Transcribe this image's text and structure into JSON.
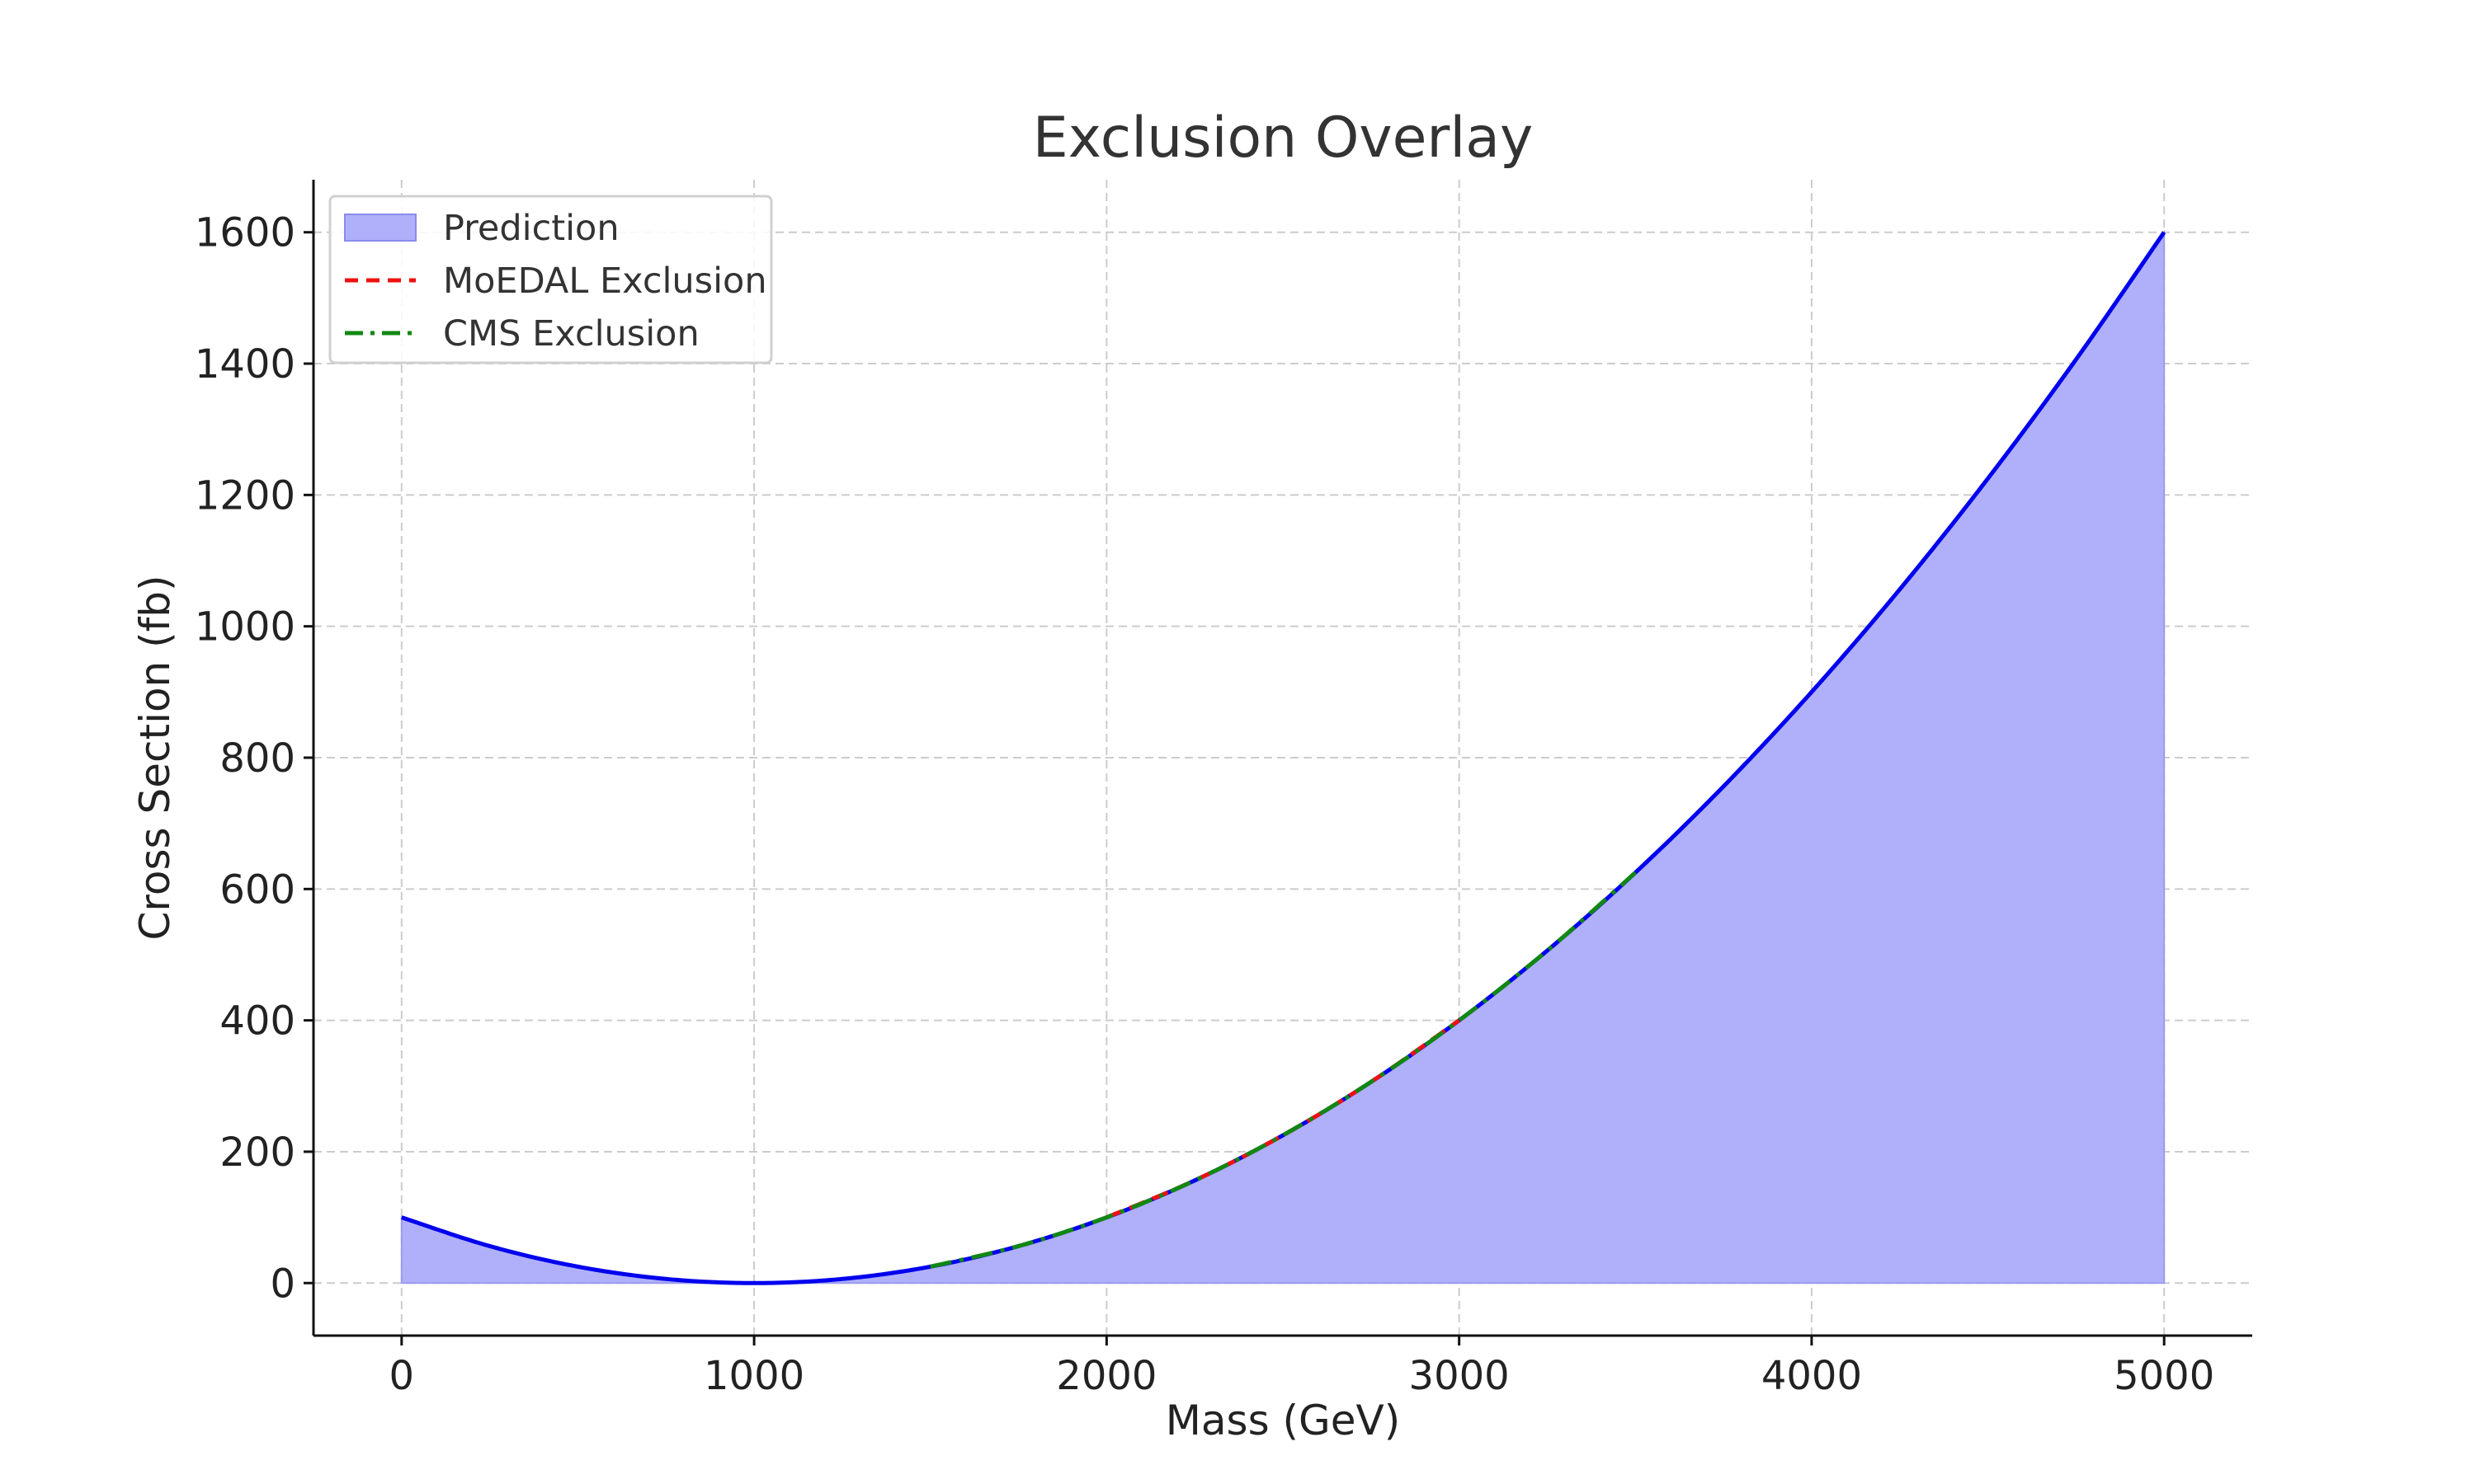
{
  "chart_data": {
    "type": "area",
    "title": "Exclusion Overlay",
    "xlabel": "Mass (GeV)",
    "ylabel": "Cross Section (fb)",
    "xlim": [
      -250,
      5250
    ],
    "ylim": [
      -80,
      1680
    ],
    "xticks": [
      0,
      1000,
      2000,
      3000,
      4000,
      5000
    ],
    "yticks": [
      0,
      200,
      400,
      600,
      800,
      1000,
      1200,
      1400,
      1600
    ],
    "grid": true,
    "legend_position": "top-left",
    "series": [
      {
        "name": "Prediction",
        "kind": "filled-area",
        "line_color": "#0000ee",
        "fill_color": "#b0b0fa",
        "x": [
          0,
          250,
          500,
          750,
          1000,
          1250,
          1500,
          1750,
          2000,
          2250,
          2500,
          2750,
          3000,
          3250,
          3500,
          3750,
          4000,
          4250,
          4500,
          4750,
          5000
        ],
        "y": [
          100,
          56.25,
          25,
          6.25,
          0,
          6.25,
          25,
          56.25,
          100,
          156.25,
          225,
          306.25,
          400,
          506.25,
          625,
          756.25,
          900,
          1056.25,
          1225,
          1406.25,
          1600
        ]
      },
      {
        "name": "MoEDAL Exclusion",
        "kind": "dashed-line",
        "line_color": "#ee1111",
        "x": [
          2000,
          2250,
          2500,
          2750,
          3000
        ],
        "y": [
          100,
          156.25,
          225,
          306.25,
          400
        ]
      },
      {
        "name": "CMS Exclusion",
        "kind": "dashdot-line",
        "line_color": "#118811",
        "x": [
          1500,
          1750,
          2000,
          2250,
          2500,
          2750,
          3000,
          3250,
          3500
        ],
        "y": [
          25,
          56.25,
          100,
          156.25,
          225,
          306.25,
          400,
          506.25,
          625
        ]
      }
    ]
  }
}
